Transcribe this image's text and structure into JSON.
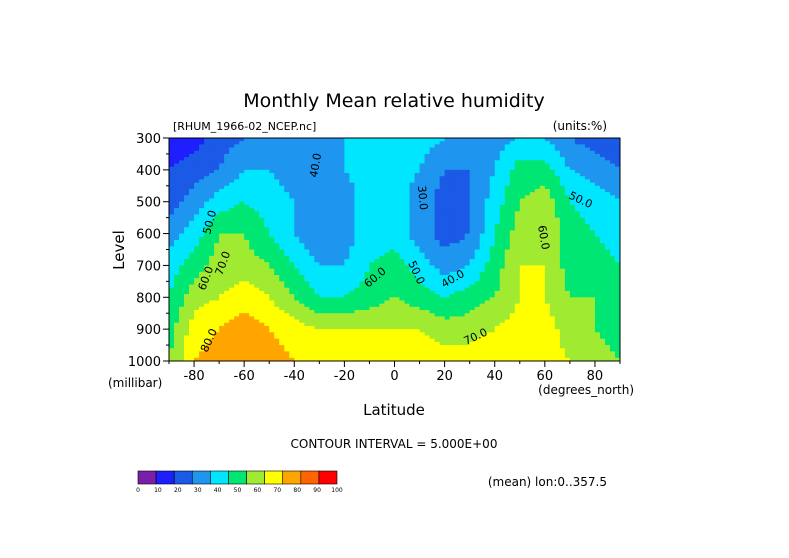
{
  "chart_data": {
    "type": "heatmap",
    "title": "Monthly Mean relative humidity",
    "dataset_label": "[RHUM_1966-02_NCEP.nc]",
    "units_label": "(units:%)",
    "xlabel": "Latitude",
    "x_units_label": "(degrees_north)",
    "ylabel": "Level",
    "y_units_label": "(millibar)",
    "xlim": [
      -90,
      90
    ],
    "ylim": [
      1000,
      300
    ],
    "x_ticks": [
      -80,
      -60,
      -40,
      -20,
      0,
      20,
      40,
      60,
      80
    ],
    "y_ticks": [
      300,
      400,
      500,
      600,
      700,
      800,
      900,
      1000
    ],
    "x": [
      -90,
      -80,
      -70,
      -60,
      -50,
      -40,
      -30,
      -20,
      -10,
      0,
      10,
      20,
      30,
      40,
      50,
      60,
      70,
      80,
      90
    ],
    "y": [
      300,
      400,
      500,
      600,
      700,
      800,
      900,
      1000
    ],
    "z": [
      [
        10,
        15,
        25,
        30,
        35,
        35,
        35,
        40,
        45,
        50,
        45,
        40,
        35,
        35,
        40,
        40,
        30,
        25,
        20
      ],
      [
        20,
        25,
        30,
        40,
        40,
        35,
        35,
        40,
        45,
        45,
        40,
        30,
        30,
        40,
        55,
        55,
        40,
        35,
        30
      ],
      [
        25,
        35,
        45,
        50,
        45,
        40,
        30,
        35,
        45,
        45,
        35,
        25,
        30,
        45,
        60,
        65,
        50,
        45,
        40
      ],
      [
        35,
        45,
        60,
        60,
        50,
        40,
        30,
        35,
        45,
        45,
        35,
        25,
        30,
        50,
        65,
        70,
        55,
        50,
        45
      ],
      [
        45,
        55,
        65,
        65,
        60,
        50,
        40,
        40,
        50,
        55,
        45,
        35,
        40,
        55,
        70,
        70,
        55,
        55,
        50
      ],
      [
        50,
        65,
        70,
        75,
        70,
        60,
        50,
        50,
        55,
        60,
        55,
        50,
        55,
        60,
        70,
        70,
        60,
        60,
        55
      ],
      [
        55,
        75,
        80,
        85,
        80,
        75,
        70,
        70,
        70,
        70,
        70,
        65,
        65,
        70,
        75,
        75,
        65,
        60,
        55
      ],
      [
        60,
        80,
        85,
        90,
        85,
        80,
        75,
        75,
        75,
        75,
        75,
        75,
        75,
        80,
        80,
        75,
        70,
        65,
        60
      ]
    ],
    "contour_labels": [
      "40.0",
      "50.0",
      "60.0",
      "70.0",
      "30.0",
      "80.0"
    ],
    "contour_interval_text": "CONTOUR INTERVAL = 5.000E+00",
    "averaging_text": "(mean) lon:0..357.5",
    "colorbar": {
      "tick_labels": [
        "0",
        "10",
        "20",
        "30",
        "40",
        "50",
        "60",
        "70",
        "80",
        "90",
        "100"
      ],
      "colors": [
        "#7a1fa8",
        "#1e1eff",
        "#1a5ae6",
        "#1e96f0",
        "#00e6ff",
        "#00e673",
        "#a0eb32",
        "#ffff00",
        "#ffa500",
        "#ff6400",
        "#ff0000"
      ]
    },
    "grid": false
  }
}
